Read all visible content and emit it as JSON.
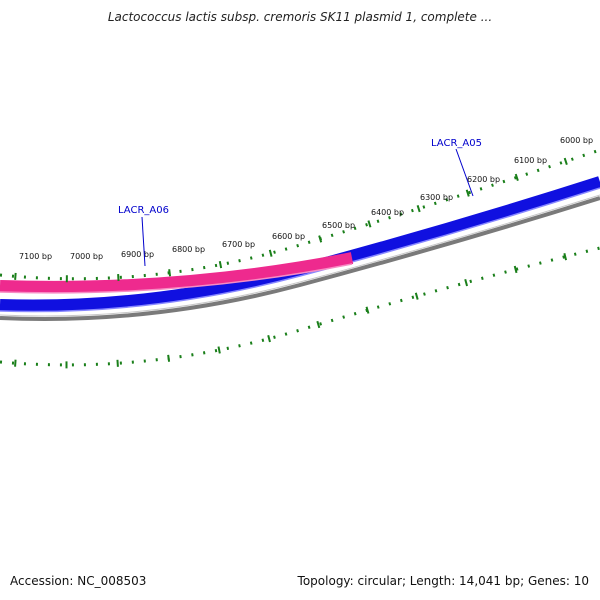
{
  "title": "Lactococcus lactis subsp. cremoris SK11 plasmid 1, complete ...",
  "footer": {
    "accession": "Accession: NC_008503",
    "summary": "Topology: circular; Length: 14,041 bp; Genes: 10"
  },
  "scale": {
    "tick_color": "#1a7f1a",
    "labels": [
      "7100 bp",
      "7000 bp",
      "6900 bp",
      "6800 bp",
      "6700 bp",
      "6600 bp",
      "6500 bp",
      "6400 bp",
      "6300 bp",
      "6200 bp",
      "6100 bp",
      "6000 bp"
    ]
  },
  "genes": [
    {
      "label": "LACR_A06",
      "color": "#ee2a8e",
      "strand": "forward"
    },
    {
      "label": "LACR_A05",
      "color": "#1010e0",
      "strand": "forward"
    }
  ],
  "colors": {
    "gene_label": "#0000cc",
    "backbone": "#7a7a7a"
  }
}
